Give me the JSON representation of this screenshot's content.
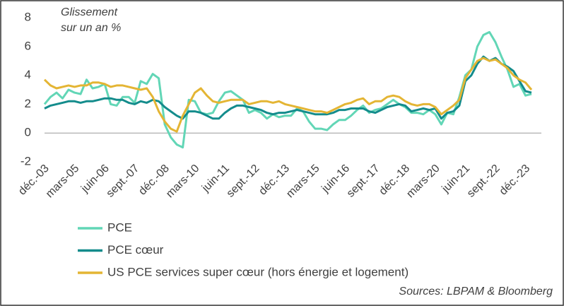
{
  "chart_data": {
    "type": "line",
    "annotation": [
      "Glissement",
      "sur un an %"
    ],
    "source": "Sources: LBPAM & Bloomberg",
    "categories": [
      "déc.-03",
      null,
      null,
      null,
      null,
      "mars-05",
      null,
      null,
      null,
      null,
      "juin-06",
      null,
      null,
      null,
      null,
      "sept.-07",
      null,
      null,
      null,
      null,
      "déc.-08",
      null,
      null,
      null,
      null,
      "mars-10",
      null,
      null,
      null,
      null,
      "juin-11",
      null,
      null,
      null,
      null,
      "sept.-12",
      null,
      null,
      null,
      null,
      "déc.-13",
      null,
      null,
      null,
      null,
      "mars-15",
      null,
      null,
      null,
      null,
      "juin-16",
      null,
      null,
      null,
      null,
      "sept.-17",
      null,
      null,
      null,
      null,
      "déc.-18",
      null,
      null,
      null,
      null,
      "mars-20",
      null,
      null,
      null,
      null,
      "juin-21",
      null,
      null,
      null,
      null,
      "sept.-22",
      null,
      null,
      null,
      null,
      "déc.-23",
      null
    ],
    "series": [
      {
        "name": "PCE",
        "color": "#62d6b6",
        "values": [
          2.0,
          2.5,
          2.8,
          2.4,
          3.0,
          2.8,
          2.7,
          3.7,
          3.1,
          3.2,
          3.4,
          2.0,
          1.9,
          2.5,
          2.5,
          2.1,
          3.6,
          3.4,
          4.1,
          3.8,
          0.6,
          -0.3,
          -0.8,
          -1.0,
          2.3,
          2.2,
          1.4,
          1.3,
          1.4,
          2.2,
          2.8,
          2.9,
          2.6,
          2.3,
          1.4,
          1.6,
          1.4,
          1.0,
          1.3,
          1.1,
          1.2,
          1.2,
          1.7,
          1.5,
          0.8,
          0.3,
          0.3,
          0.2,
          0.6,
          0.9,
          0.9,
          1.2,
          1.6,
          1.9,
          1.4,
          1.6,
          1.7,
          2.0,
          2.3,
          2.0,
          1.8,
          1.4,
          1.4,
          1.3,
          1.6,
          1.3,
          0.6,
          1.4,
          1.3,
          2.5,
          4.0,
          4.4,
          6.0,
          6.8,
          7.0,
          6.3,
          5.3,
          4.4,
          3.2,
          3.4,
          2.6,
          2.7
        ]
      },
      {
        "name": "PCE cœur",
        "color": "#148c8c",
        "values": [
          1.7,
          1.9,
          2.0,
          2.1,
          2.2,
          2.2,
          2.1,
          2.2,
          2.2,
          2.3,
          2.4,
          2.4,
          2.3,
          2.3,
          2.1,
          2.0,
          2.2,
          2.1,
          2.3,
          2.2,
          1.8,
          1.5,
          1.2,
          1.0,
          1.5,
          1.5,
          1.4,
          1.2,
          1.0,
          1.0,
          1.4,
          1.7,
          1.9,
          1.9,
          1.8,
          1.7,
          1.6,
          1.4,
          1.3,
          1.4,
          1.4,
          1.5,
          1.6,
          1.5,
          1.4,
          1.3,
          1.3,
          1.3,
          1.4,
          1.6,
          1.6,
          1.7,
          1.7,
          1.7,
          1.5,
          1.4,
          1.6,
          1.8,
          1.9,
          2.0,
          1.9,
          1.5,
          1.6,
          1.7,
          1.6,
          1.7,
          1.0,
          1.4,
          1.5,
          1.9,
          3.6,
          4.0,
          4.8,
          5.3,
          5.0,
          5.2,
          4.8,
          4.6,
          4.3,
          3.6,
          2.9,
          2.8
        ]
      },
      {
        "name": "US PCE services super cœur (hors énergie et logement)",
        "color": "#e4b534",
        "values": [
          3.7,
          3.3,
          3.1,
          3.2,
          3.3,
          3.2,
          3.3,
          3.3,
          3.5,
          3.5,
          3.4,
          3.2,
          3.3,
          3.3,
          3.2,
          3.1,
          3.0,
          3.1,
          2.5,
          1.5,
          0.8,
          0.3,
          0.1,
          1.2,
          2.0,
          2.8,
          3.1,
          2.6,
          2.2,
          2.1,
          2.2,
          2.3,
          2.3,
          2.3,
          2.0,
          2.1,
          2.2,
          2.2,
          2.1,
          2.2,
          2.0,
          1.9,
          1.8,
          1.7,
          1.6,
          1.5,
          1.5,
          1.4,
          1.6,
          1.8,
          2.0,
          2.1,
          2.3,
          2.4,
          2.0,
          2.2,
          2.2,
          2.5,
          2.6,
          2.5,
          2.2,
          2.0,
          1.9,
          2.0,
          2.0,
          1.8,
          1.3,
          1.6,
          1.9,
          2.3,
          3.8,
          4.4,
          5.0,
          5.2,
          5.0,
          5.1,
          4.8,
          4.5,
          4.0,
          3.7,
          3.5,
          3.0
        ]
      }
    ],
    "ylim": [
      -2,
      8
    ],
    "yticks": [
      8,
      6,
      4,
      2,
      0,
      -2
    ]
  }
}
